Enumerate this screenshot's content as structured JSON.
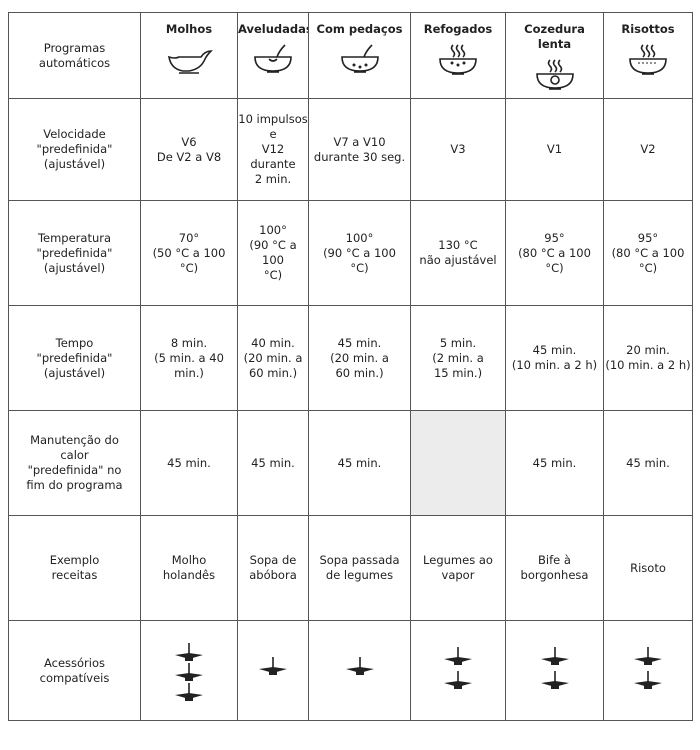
{
  "table": {
    "header": [
      "Programas\nautomáticos",
      "Molhos",
      "Aveludadas",
      "Com pedaços",
      "Refogados",
      "Cozedura lenta",
      "Risottos"
    ],
    "rows": [
      [
        "Velocidade\n\"predefinida\"\n(ajustável)",
        "V6\nDe V2 a V8",
        "10 impulsos e\nV12 durante\n2 min.",
        "V7 a V10\ndurante 30 seg.",
        "V3",
        "V1",
        "V2"
      ],
      [
        "Temperatura\n\"predefinida\"\n(ajustável)",
        "70°\n(50 °C a 100\n°C)",
        "100°\n(90 °C a 100\n°C)",
        "100°\n(90 °C a 100\n°C)",
        "130 °C\nnão ajustável",
        "95°\n(80 °C a 100\n°C)",
        "95°\n(80 °C a 100\n°C)"
      ],
      [
        "Tempo\n\"predefinida\"\n(ajustável)",
        "8 min.\n(5 min. a 40\nmin.)",
        "40 min.\n(20 min. a\n60 min.)",
        "45 min.\n(20 min. a\n60 min.)",
        "5 min.\n(2 min. a\n15 min.)",
        "45 min.\n(10 min. a 2 h)",
        "20 min.\n(10 min. a 2 h)"
      ],
      [
        "Manutenção do\ncalor\n\"predefinida\" no\nfim do programa",
        "45 min.",
        "45 min.",
        "45 min.",
        null,
        "45 min.",
        "45 min."
      ],
      [
        "Exemplo\nreceitas",
        "Molho\nholandês",
        "Sopa de\nabóbora",
        "Sopa passada\nde legumes",
        "Legumes ao\nvapor",
        "Bife à\nborgonhesa",
        "Risoto"
      ],
      [
        "Acessórios\ncompatíveis"
      ]
    ]
  }
}
